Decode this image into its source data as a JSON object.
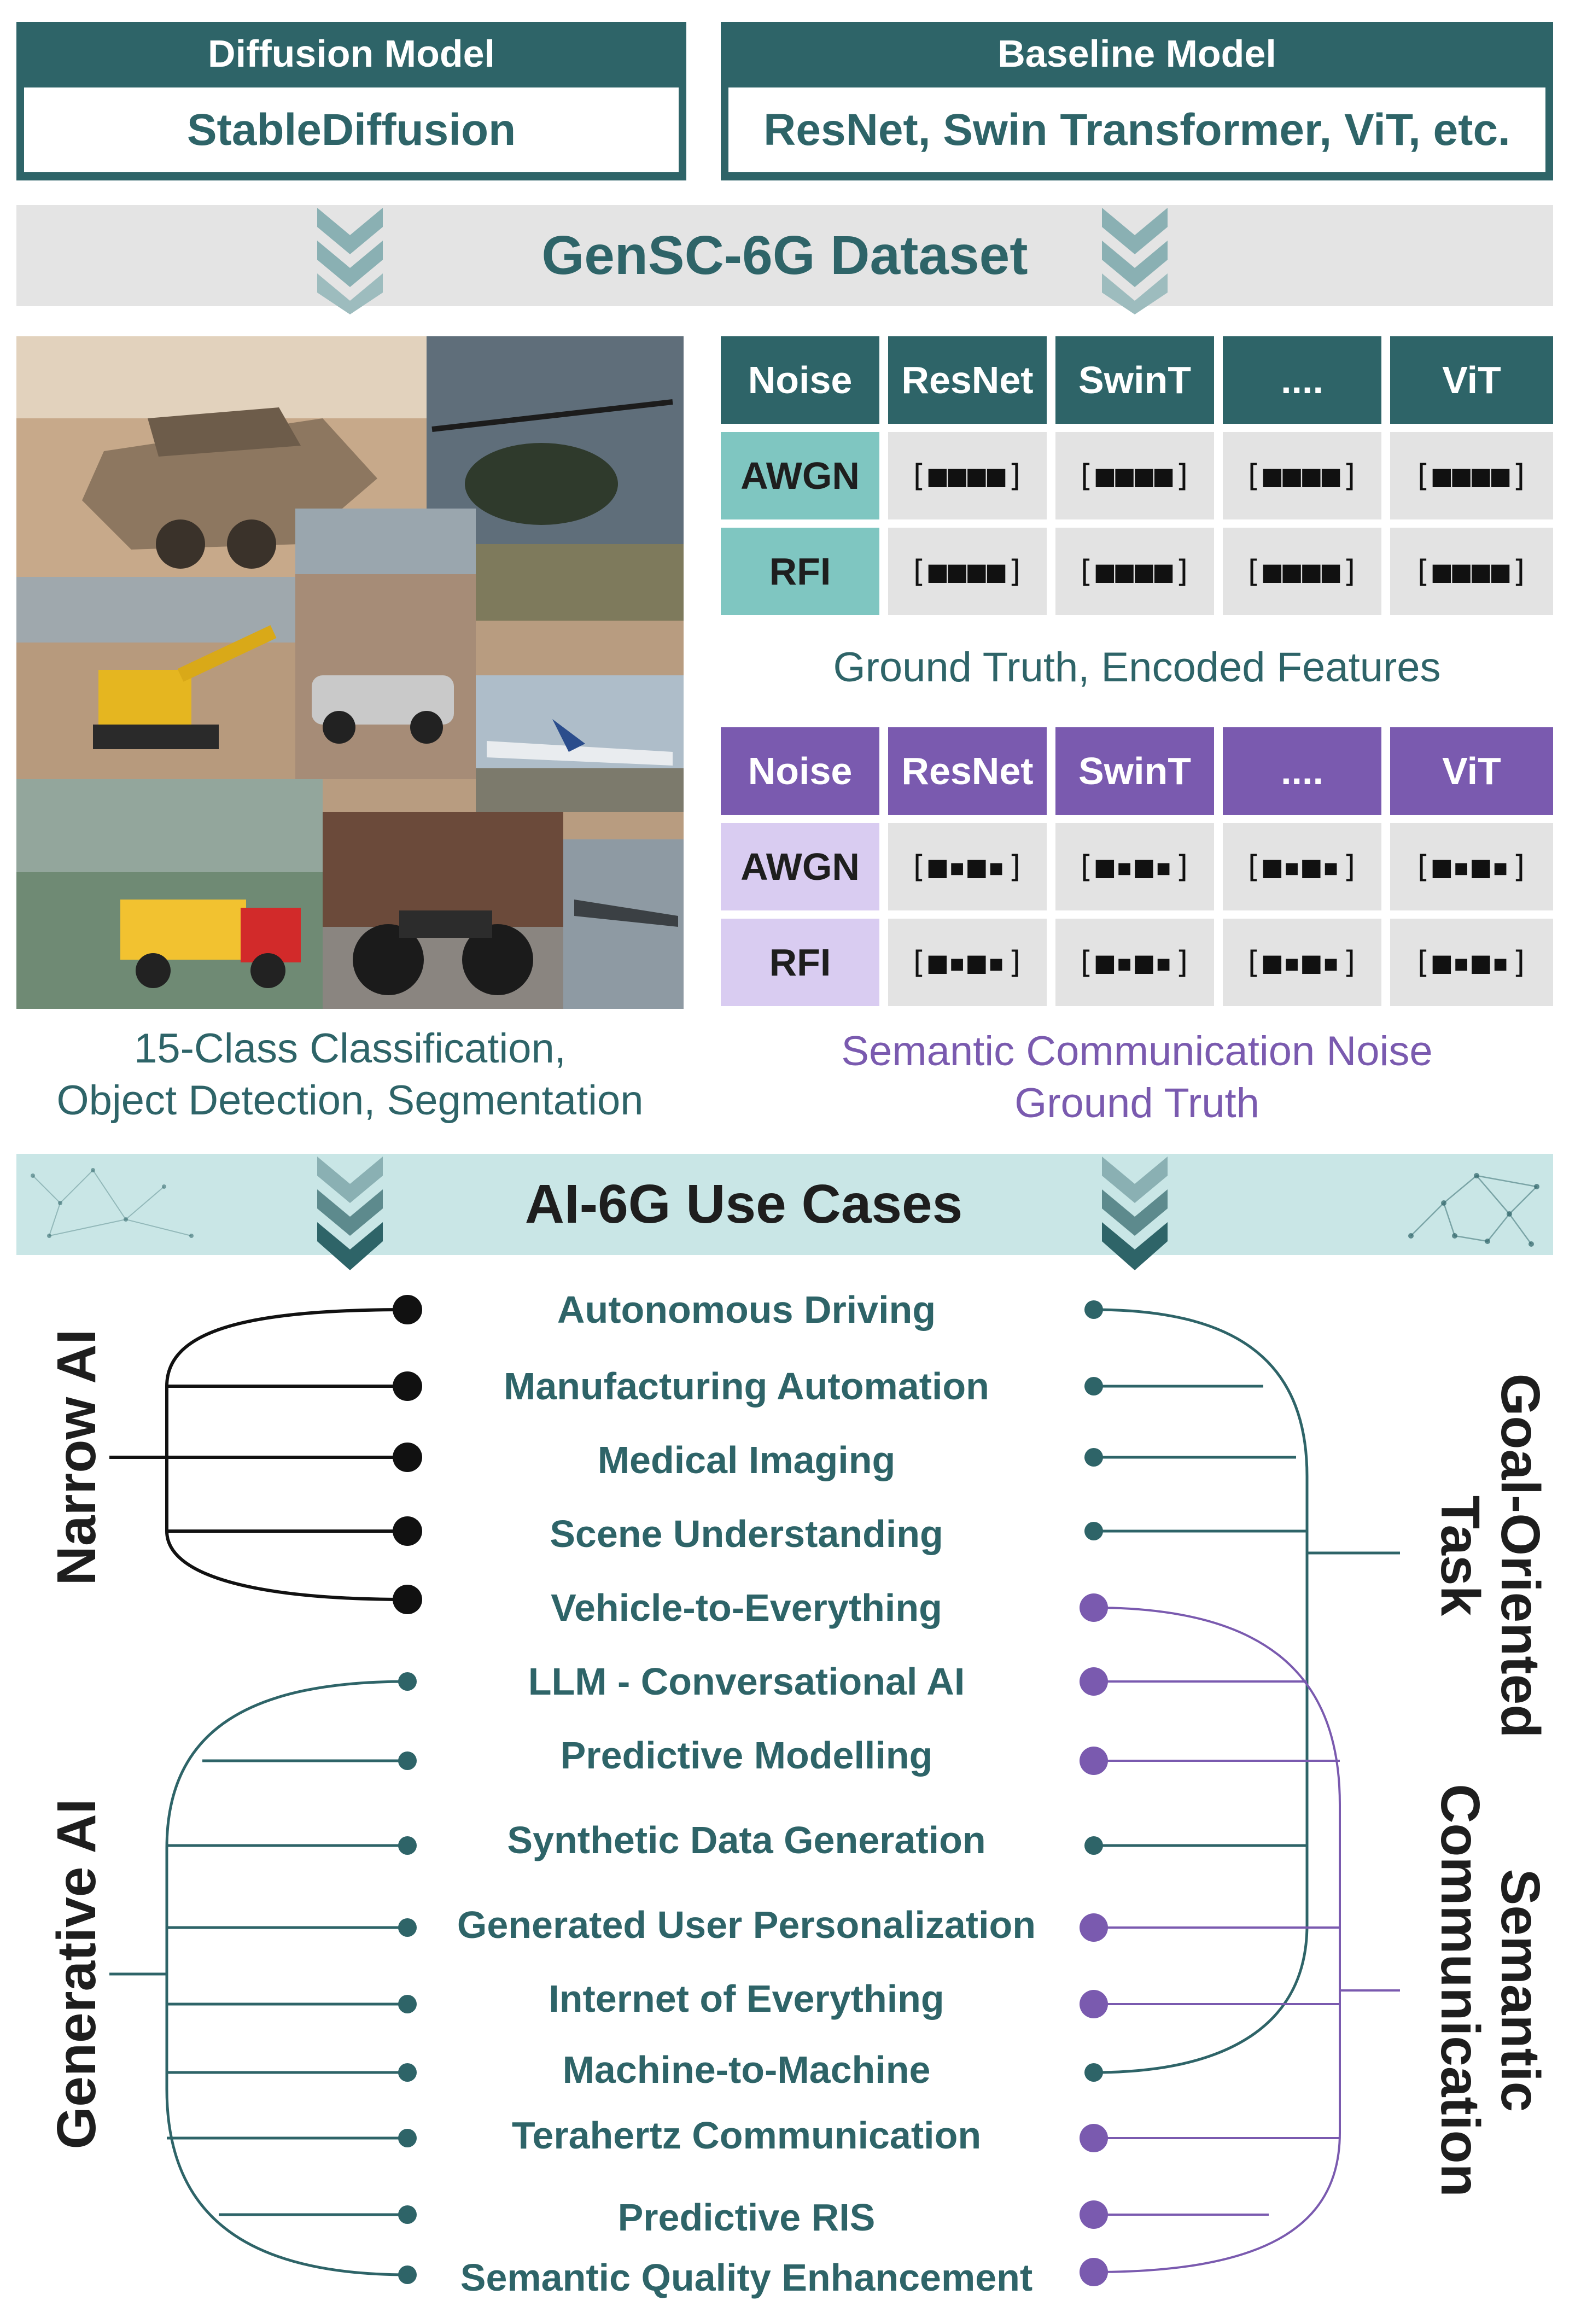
{
  "diffusion_model": {
    "header": "Diffusion Model",
    "value": "StableDiffusion"
  },
  "baseline_model": {
    "header": "Baseline Model",
    "value": "ResNet, Swin Transformer, ViT, etc."
  },
  "dataset_title": "GenSC-6G Dataset",
  "ground_truth_table": {
    "headers": [
      "Noise",
      "ResNet",
      "SwinT",
      "....",
      "ViT"
    ],
    "rows": [
      "AWGN",
      "RFI"
    ],
    "cell_glyph": "[■■■■]",
    "caption": "Ground Truth, Encoded Features"
  },
  "noise_table": {
    "headers": [
      "Noise",
      "ResNet",
      "SwinT",
      "....",
      "ViT"
    ],
    "rows": [
      "AWGN",
      "RFI"
    ],
    "cell_glyph": "[■▪■▪]",
    "caption_line1": "Semantic Communication Noise",
    "caption_line2": "Ground Truth"
  },
  "image_caption": {
    "line1": "15-Class Classification,",
    "line2": "Object Detection, Segmentation"
  },
  "use_cases_title": "AI-6G Use Cases",
  "groups": {
    "narrow_ai": "Narrow AI",
    "generative_ai": "Generative AI",
    "goal_oriented": {
      "line1": "Goal-Oriented",
      "line2": "Task"
    },
    "semantic_comm": {
      "line1": "Semantic",
      "line2": "Communication"
    }
  },
  "use_cases": [
    "Autonomous Driving",
    "Manufacturing Automation",
    "Medical Imaging",
    "Scene Understanding",
    "Vehicle-to-Everything",
    "LLM - Conversational AI",
    "Predictive Modelling",
    "Synthetic Data Generation",
    "Generated User Personalization",
    "Internet of Everything",
    "Machine-to-Machine",
    "Terahertz Communication",
    "Predictive RIS",
    "Semantic Quality Enhancement"
  ],
  "colors": {
    "teal_dark": "#2e6468",
    "teal_light": "#7fc6c1",
    "purple": "#7a5aaf",
    "purple_light": "#d9ccf1",
    "narrow_line": "#111111"
  },
  "icons": [
    "chevron-down-icon",
    "network-pattern-icon",
    "photo-collage"
  ]
}
